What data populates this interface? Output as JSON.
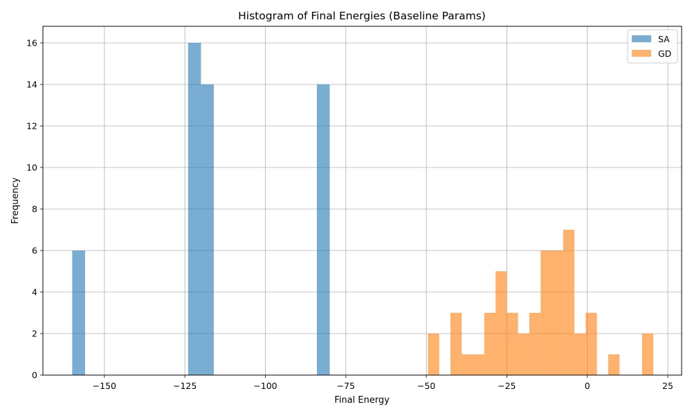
{
  "chart_data": {
    "type": "bar",
    "title": "Histogram of Final Energies (Baseline Params)",
    "xlabel": "Final Energy",
    "ylabel": "Frequency",
    "xlim": [
      -169.1,
      29.3
    ],
    "ylim": [
      0,
      16.8
    ],
    "xticks": [
      -150,
      -125,
      -100,
      -75,
      -50,
      -25,
      0,
      25
    ],
    "xtick_labels": [
      "−150",
      "−125",
      "−100",
      "−75",
      "−50",
      "−25",
      "0",
      "25"
    ],
    "yticks": [
      0,
      2,
      4,
      6,
      8,
      10,
      12,
      14,
      16
    ],
    "ytick_labels": [
      "0",
      "2",
      "4",
      "6",
      "8",
      "10",
      "12",
      "14",
      "16"
    ],
    "grid": true,
    "legend": "top-right",
    "series": [
      {
        "name": "SA",
        "color": "#1f77b4",
        "opacity": 0.6,
        "bins": [
          {
            "x0": -160.0,
            "x1": -156.0,
            "count": 6
          },
          {
            "x0": -124.0,
            "x1": -120.0,
            "count": 16
          },
          {
            "x0": -120.0,
            "x1": -116.0,
            "count": 14
          },
          {
            "x0": -84.0,
            "x1": -80.0,
            "count": 14
          }
        ]
      },
      {
        "name": "GD",
        "color": "#ff7f0e",
        "opacity": 0.6,
        "bins": [
          {
            "x0": -49.5,
            "x1": -46.0,
            "count": 2
          },
          {
            "x0": -42.5,
            "x1": -39.0,
            "count": 3
          },
          {
            "x0": -39.0,
            "x1": -35.5,
            "count": 1
          },
          {
            "x0": -35.5,
            "x1": -32.0,
            "count": 1
          },
          {
            "x0": -32.0,
            "x1": -28.5,
            "count": 3
          },
          {
            "x0": -28.5,
            "x1": -25.0,
            "count": 5
          },
          {
            "x0": -25.0,
            "x1": -21.5,
            "count": 3
          },
          {
            "x0": -21.5,
            "x1": -18.0,
            "count": 2
          },
          {
            "x0": -18.0,
            "x1": -14.5,
            "count": 3
          },
          {
            "x0": -14.5,
            "x1": -11.0,
            "count": 6
          },
          {
            "x0": -11.0,
            "x1": -7.5,
            "count": 6
          },
          {
            "x0": -7.5,
            "x1": -4.0,
            "count": 7
          },
          {
            "x0": -4.0,
            "x1": -0.5,
            "count": 2
          },
          {
            "x0": -0.5,
            "x1": 3.0,
            "count": 3
          },
          {
            "x0": 6.5,
            "x1": 10.0,
            "count": 1
          },
          {
            "x0": 17.0,
            "x1": 20.5,
            "count": 2
          }
        ]
      }
    ]
  }
}
